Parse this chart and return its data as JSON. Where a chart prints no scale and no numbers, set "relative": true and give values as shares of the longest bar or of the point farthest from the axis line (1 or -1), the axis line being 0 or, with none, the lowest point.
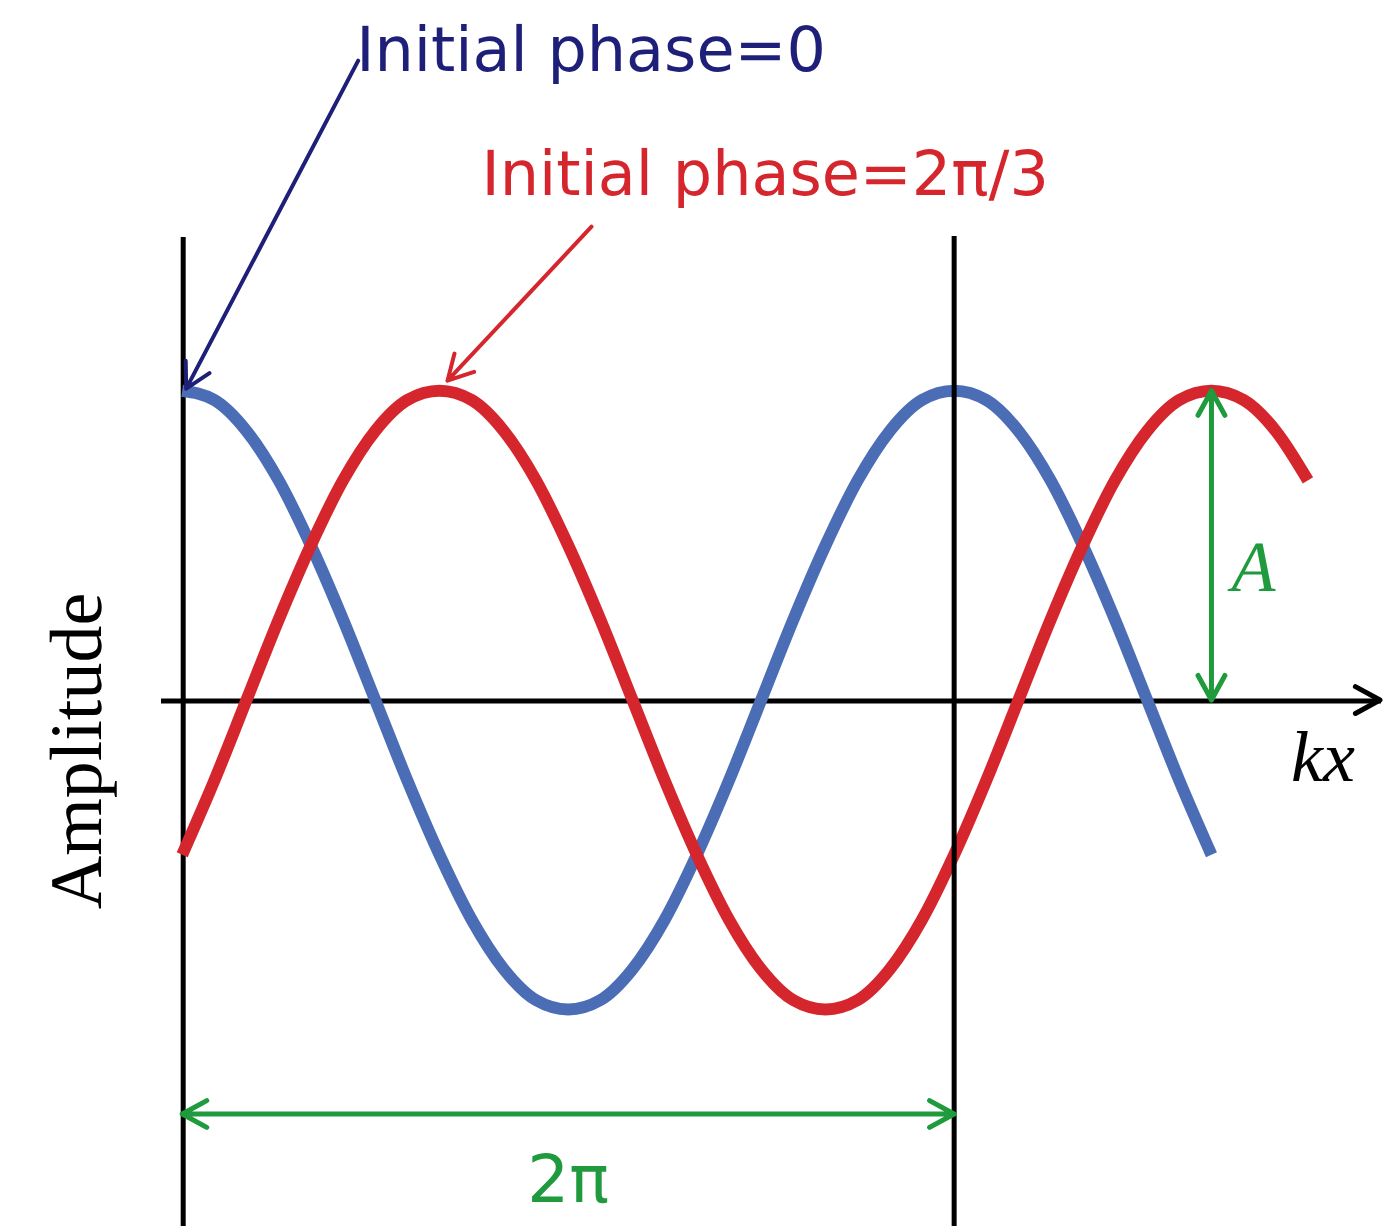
{
  "chart_data": {
    "type": "line",
    "relative": true,
    "tick_labels": false,
    "xlabel": "kx",
    "ylabel": "Amplitude",
    "categories": [
      null,
      null,
      null,
      null,
      null,
      null,
      null,
      null,
      null,
      null,
      null,
      null,
      null,
      null,
      null,
      null,
      null,
      null,
      null,
      null,
      null,
      null,
      null,
      null,
      null,
      null,
      null,
      null,
      null,
      null,
      null,
      null,
      null,
      null,
      null,
      null
    ],
    "series": [
      {
        "color": "#4a6db5",
        "values": [
          1,
          0.97,
          0.87,
          0.71,
          0.5,
          0.26,
          0,
          -0.26,
          -0.5,
          -0.71,
          -0.87,
          -0.97,
          -1,
          -0.97,
          -0.87,
          -0.71,
          -0.5,
          -0.26,
          0,
          0.26,
          0.5,
          0.71,
          0.87,
          0.97,
          1,
          0.97,
          0.87,
          0.71,
          0.5,
          0.26,
          0,
          -0.26,
          -0.5,
          null,
          null,
          null
        ]
      },
      {
        "color": "#d6262d",
        "values": [
          -0.5,
          -0.26,
          0,
          0.26,
          0.5,
          0.71,
          0.87,
          0.97,
          1,
          0.97,
          0.87,
          0.71,
          0.5,
          0.26,
          0,
          -0.26,
          -0.5,
          -0.71,
          -0.87,
          -0.97,
          -1,
          -0.97,
          -0.87,
          -0.71,
          -0.5,
          -0.26,
          0,
          0.26,
          0.5,
          0.71,
          0.87,
          0.97,
          1,
          0.97,
          0.87,
          0.71
        ]
      }
    ],
    "annotations": [
      "Initial phase=0",
      "Initial phase=2π/3",
      {
        "text": "A",
        "y": 1
      },
      "2π"
    ]
  }
}
